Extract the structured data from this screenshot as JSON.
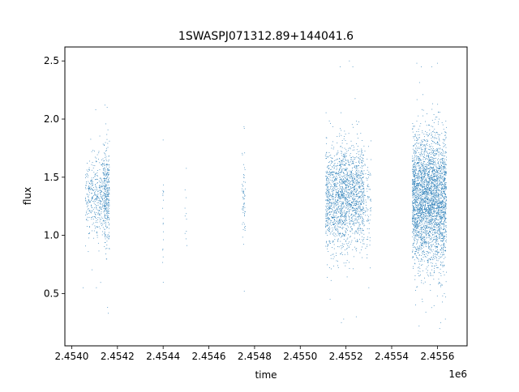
{
  "chart_data": {
    "type": "scatter",
    "title": "1SWASPJ071312.89+144041.6",
    "xlabel": "time",
    "ylabel": "flux",
    "x_offset_label": "1e6",
    "x_scale": 1000000,
    "xlim": [
      2.45397,
      2.45573
    ],
    "ylim": [
      0.05,
      2.62
    ],
    "x_ticks": [
      2.454,
      2.4542,
      2.4544,
      2.4546,
      2.4548,
      2.455,
      2.4552,
      2.4554,
      2.4556
    ],
    "x_tick_labels": [
      "2.4540",
      "2.4542",
      "2.4544",
      "2.4546",
      "2.4548",
      "2.4550",
      "2.4552",
      "2.4554",
      "2.4556"
    ],
    "y_ticks": [
      0.5,
      1.0,
      1.5,
      2.0,
      2.5
    ],
    "y_tick_labels": [
      "0.5",
      "1.0",
      "1.5",
      "2.0",
      "2.5"
    ],
    "grid": false,
    "legend": "none",
    "marker_color": "#1f77b4",
    "series": [
      {
        "clusters": [
          {
            "x_range": [
              2454060,
              2454100
            ],
            "y_center": 1.35,
            "y_spread": 0.16,
            "n": 160
          },
          {
            "x_range": [
              2454100,
              2454140
            ],
            "y_center": 1.35,
            "y_spread": 0.18,
            "n": 220
          },
          {
            "x_range": [
              2454140,
              2454165
            ],
            "y_center": 1.35,
            "y_spread": 0.22,
            "n": 330
          },
          {
            "x_range": [
              2454398,
              2454402
            ],
            "y_center": 1.2,
            "y_spread": 0.25,
            "n": 18
          },
          {
            "x_range": [
              2454495,
              2454505
            ],
            "y_center": 1.2,
            "y_spread": 0.18,
            "n": 10
          },
          {
            "x_range": [
              2454745,
              2454760
            ],
            "y_center": 1.3,
            "y_spread": 0.2,
            "n": 60
          },
          {
            "x_range": [
              2455110,
              2455170
            ],
            "y_center": 1.3,
            "y_spread": 0.22,
            "n": 600
          },
          {
            "x_range": [
              2455170,
              2455210
            ],
            "y_center": 1.35,
            "y_spread": 0.22,
            "n": 500
          },
          {
            "x_range": [
              2455210,
              2455280
            ],
            "y_center": 1.35,
            "y_spread": 0.22,
            "n": 700
          },
          {
            "x_range": [
              2455280,
              2455310
            ],
            "y_center": 1.3,
            "y_spread": 0.2,
            "n": 80
          },
          {
            "x_range": [
              2455490,
              2455540
            ],
            "y_center": 1.3,
            "y_spread": 0.28,
            "n": 1100
          },
          {
            "x_range": [
              2455540,
              2455590
            ],
            "y_center": 1.3,
            "y_spread": 0.28,
            "n": 1100
          },
          {
            "x_range": [
              2455590,
              2455640
            ],
            "y_center": 1.3,
            "y_spread": 0.28,
            "n": 1000
          }
        ],
        "outliers": [
          [
            2454105,
            2.08
          ],
          [
            2454145,
            2.12
          ],
          [
            2454155,
            2.1
          ],
          [
            2454160,
            0.33
          ],
          [
            2454157,
            0.38
          ],
          [
            2454050,
            0.55
          ],
          [
            2454108,
            0.55
          ],
          [
            2454400,
            1.82
          ],
          [
            2454500,
            0.97
          ],
          [
            2454755,
            0.52
          ],
          [
            2454755,
            1.92
          ],
          [
            2455175,
            2.45
          ],
          [
            2455180,
            0.25
          ],
          [
            2455190,
            0.28
          ],
          [
            2455215,
            2.5
          ],
          [
            2455230,
            2.45
          ],
          [
            2455245,
            0.3
          ],
          [
            2455300,
            0.55
          ],
          [
            2455510,
            2.48
          ],
          [
            2455520,
            0.22
          ],
          [
            2455530,
            2.45
          ],
          [
            2455575,
            2.45
          ],
          [
            2455600,
            2.48
          ],
          [
            2455610,
            0.2
          ],
          [
            2455615,
            0.25
          ],
          [
            2455635,
            0.28
          ]
        ]
      }
    ]
  }
}
